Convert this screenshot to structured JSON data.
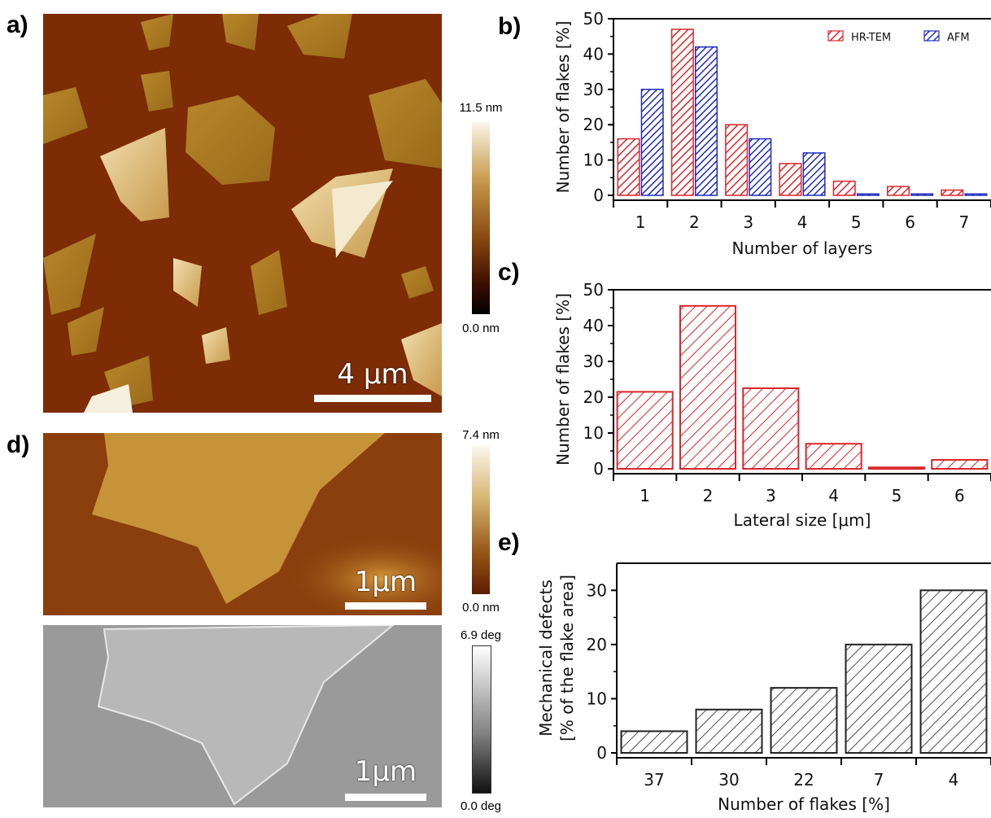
{
  "panels": {
    "a": "a)",
    "b": "b)",
    "c": "c)",
    "d": "d)",
    "e": "e)"
  },
  "image_a": {
    "scalebar": "4 µm",
    "colorbar_max": "11.5 nm",
    "colorbar_min": "0.0 nm"
  },
  "image_d_top": {
    "scalebar": "1µm",
    "colorbar_max": "7.4 nm",
    "colorbar_min": "0.0 nm"
  },
  "image_d_bottom": {
    "scalebar": "1µm",
    "colorbar_max": "6.9 deg",
    "colorbar_min": "0.0 deg"
  },
  "colors": {
    "hrtem": "#d9262b",
    "afm": "#1f2bbf",
    "defects": "#222222"
  },
  "chart_data": [
    {
      "id": "b",
      "type": "bar",
      "categories": [
        "1",
        "2",
        "3",
        "4",
        "5",
        "6",
        "7"
      ],
      "series": [
        {
          "name": "HR-TEM",
          "values": [
            16,
            47,
            20,
            9,
            4,
            2.5,
            1.5
          ]
        },
        {
          "name": "AFM",
          "values": [
            30,
            42,
            16,
            12,
            0.4,
            0.4,
            0.4
          ]
        }
      ],
      "xlabel": "Number of layers",
      "ylabel": "Number of flakes [%]",
      "ylim": [
        0,
        50
      ],
      "yticks": [
        0,
        10,
        20,
        30,
        40,
        50
      ],
      "legend": "top-right"
    },
    {
      "id": "c",
      "type": "bar",
      "categories": [
        "1",
        "2",
        "3",
        "4",
        "5",
        "6"
      ],
      "values": [
        21.5,
        45.5,
        22.5,
        7,
        0.4,
        2.5
      ],
      "xlabel": "Lateral size [μm]",
      "ylabel": "Number of flakes [%]",
      "ylim": [
        0,
        50
      ],
      "yticks": [
        0,
        10,
        20,
        30,
        40,
        50
      ]
    },
    {
      "id": "e",
      "type": "bar",
      "categories": [
        "37",
        "30",
        "22",
        "7",
        "4"
      ],
      "values": [
        4,
        8,
        12,
        20,
        30
      ],
      "xlabel": "Number of flakes [%]",
      "ylabel": "Mechanical defects",
      "ylabel2": "[% of the flake area]",
      "ylim": [
        0,
        35
      ],
      "yticks": [
        0,
        10,
        20,
        30
      ]
    }
  ]
}
